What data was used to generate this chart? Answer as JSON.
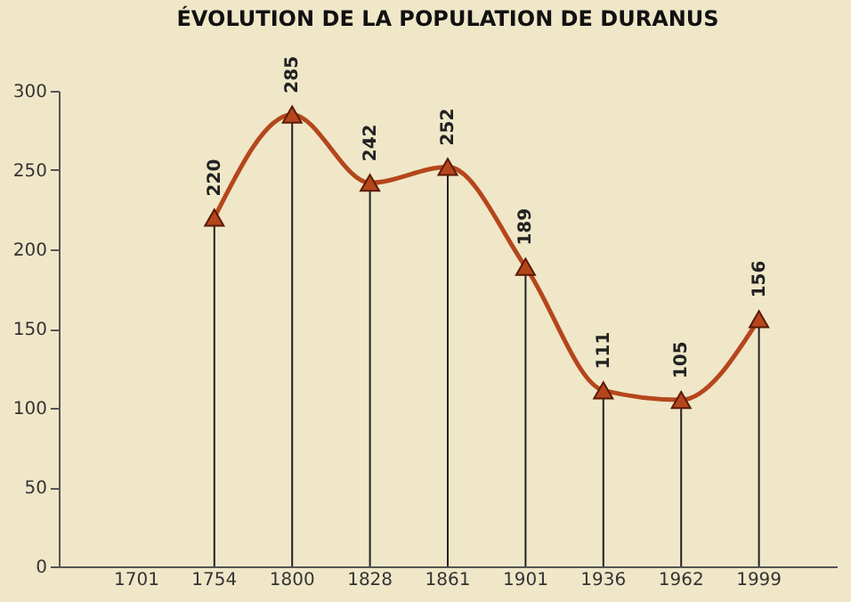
{
  "chart_data": {
    "type": "line",
    "title": "ÉVOLUTION DE LA POPULATION DE DURANUS",
    "categories": [
      "1701",
      "1754",
      "1800",
      "1828",
      "1861",
      "1901",
      "1936",
      "1962",
      "1999"
    ],
    "series": [
      {
        "color": "#b5461c",
        "values": [
          null,
          220,
          285,
          242,
          252,
          189,
          111,
          105,
          156
        ]
      }
    ],
    "ylim": [
      0,
      300
    ],
    "yticks": [
      0,
      50,
      100,
      150,
      200,
      250,
      300
    ],
    "data_labels": true,
    "marker": "triangle",
    "grid": "x"
  }
}
